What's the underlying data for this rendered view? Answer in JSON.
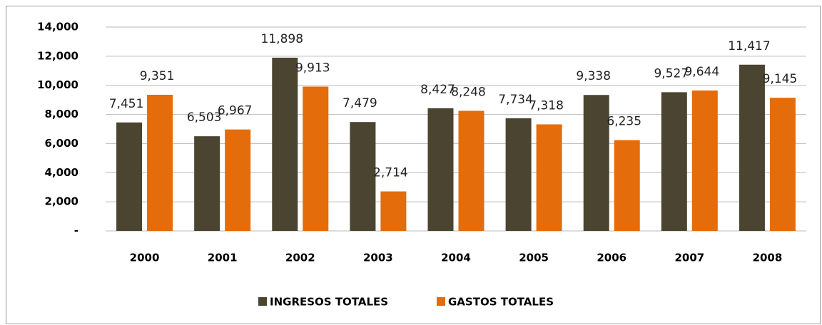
{
  "chart_data": {
    "type": "bar",
    "categories": [
      "2000",
      "2001",
      "2002",
      "2003",
      "2004",
      "2005",
      "2006",
      "2007",
      "2008"
    ],
    "series": [
      {
        "name": "INGRESOS TOTALES",
        "color": "#4a4430",
        "values": [
          7451,
          6503,
          11898,
          7479,
          8427,
          7734,
          9338,
          9527,
          11417
        ],
        "value_labels": [
          "7,451",
          "6,503",
          "11,898",
          "7,479",
          "8,427",
          "7,734",
          "9,338",
          "9,527",
          "11,417"
        ]
      },
      {
        "name": "GASTOS TOTALES",
        "color": "#e46c0a",
        "values": [
          9351,
          6967,
          9913,
          2714,
          8248,
          7318,
          6235,
          9644,
          9145
        ],
        "value_labels": [
          "9,351",
          "6,967",
          "9,913",
          "2,714",
          "8,248",
          "7,318",
          "6,235",
          "9,644",
          "9,145"
        ]
      }
    ],
    "ylim": [
      0,
      14000
    ],
    "yticks": [
      {
        "value": 0,
        "label": "-"
      },
      {
        "value": 2000,
        "label": "2,000"
      },
      {
        "value": 4000,
        "label": "4,000"
      },
      {
        "value": 6000,
        "label": "6,000"
      },
      {
        "value": 8000,
        "label": "8,000"
      },
      {
        "value": 10000,
        "label": "10,000"
      },
      {
        "value": 12000,
        "label": "12,000"
      },
      {
        "value": 14000,
        "label": "14,000"
      }
    ],
    "grid": true,
    "legend": "bottom"
  }
}
